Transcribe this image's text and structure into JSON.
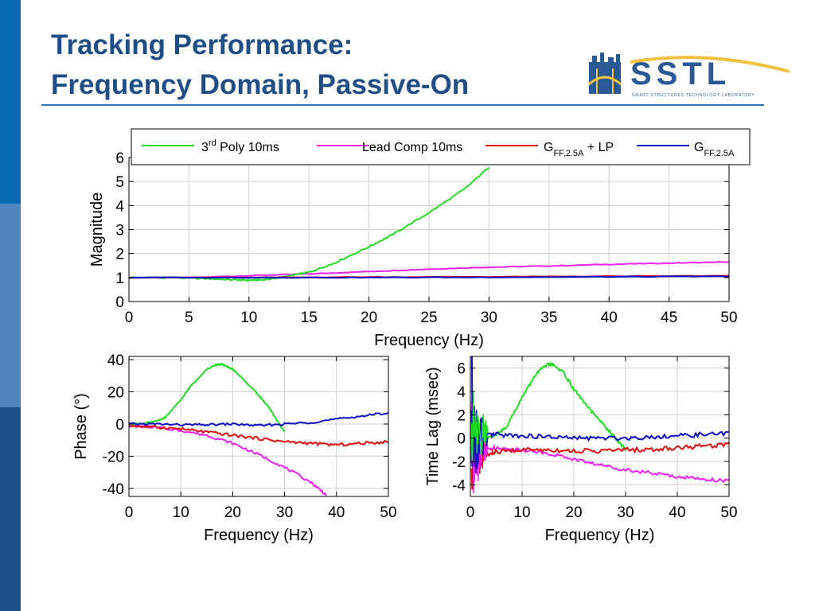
{
  "slide": {
    "title_line1": "Tracking Performance:",
    "title_line2": "Frequency Domain, Passive-On"
  },
  "logo": {
    "name": "SSTL",
    "subtitle": "SMART STRUCTURES TECHNOLOGY LABORATORY"
  },
  "colors": {
    "title": "#1f4e87",
    "poly": "#22dd22",
    "lead": "#ee22ee",
    "gff_lp": "#e01010",
    "gff": "#1010c8"
  },
  "legend": [
    {
      "key": "poly",
      "main": "3",
      "sup": "rd",
      "rest": " Poly 10ms"
    },
    {
      "key": "lead",
      "main": "Lead Comp 10ms"
    },
    {
      "key": "gff_lp",
      "main": "G",
      "sub": "FF,2.5A",
      "rest": " + LP"
    },
    {
      "key": "gff",
      "main": "G",
      "sub": "FF,2.5A"
    }
  ],
  "chart_data": [
    {
      "type": "line",
      "id": "magnitude",
      "xlabel": "Frequency (Hz)",
      "ylabel": "Magnitude",
      "xlim": [
        0,
        50
      ],
      "ylim": [
        0,
        6
      ],
      "xticks": [
        0,
        5,
        10,
        15,
        20,
        25,
        30,
        35,
        40,
        45,
        50
      ],
      "yticks": [
        0,
        1,
        2,
        3,
        4,
        5,
        6
      ],
      "grid": true,
      "legend_position": "top",
      "series": [
        {
          "key": "poly",
          "x": [
            0,
            4,
            7,
            9,
            10,
            11,
            12,
            13,
            14,
            15,
            17,
            20,
            22,
            25,
            28,
            30
          ],
          "y": [
            1.0,
            0.99,
            0.94,
            0.9,
            0.89,
            0.9,
            0.95,
            1.04,
            1.13,
            1.22,
            1.58,
            2.28,
            2.8,
            3.7,
            4.7,
            5.6
          ]
        },
        {
          "key": "lead",
          "x": [
            0,
            5,
            10,
            15,
            20,
            25,
            30,
            35,
            40,
            45,
            50
          ],
          "y": [
            1.0,
            0.99,
            1.08,
            1.15,
            1.25,
            1.35,
            1.43,
            1.48,
            1.55,
            1.6,
            1.65
          ]
        },
        {
          "key": "gff_lp",
          "x": [
            0,
            10,
            20,
            30,
            40,
            50
          ],
          "y": [
            1.0,
            1.0,
            1.02,
            1.03,
            1.05,
            1.07
          ]
        },
        {
          "key": "gff",
          "x": [
            0,
            10,
            20,
            30,
            40,
            50
          ],
          "y": [
            1.0,
            1.0,
            1.0,
            1.01,
            1.03,
            1.05
          ]
        }
      ]
    },
    {
      "type": "line",
      "id": "phase",
      "xlabel": "Frequency (Hz)",
      "ylabel": "Phase (°)",
      "xlim": [
        0,
        50
      ],
      "ylim": [
        -45,
        42
      ],
      "xticks": [
        0,
        10,
        20,
        30,
        40,
        50
      ],
      "yticks": [
        -40,
        -20,
        0,
        20,
        40
      ],
      "grid": true,
      "series": [
        {
          "key": "poly",
          "x": [
            0,
            3,
            5,
            7,
            10,
            12,
            15,
            17,
            18,
            20,
            22,
            25,
            27,
            29,
            30
          ],
          "y": [
            0,
            0.5,
            1.5,
            4,
            15,
            24,
            34,
            37,
            37,
            34,
            28,
            18,
            10,
            0,
            -5
          ]
        },
        {
          "key": "lead",
          "x": [
            0,
            5,
            10,
            15,
            20,
            25,
            30,
            35,
            38
          ],
          "y": [
            -1,
            -2,
            -4,
            -7,
            -12,
            -19,
            -27,
            -36,
            -44
          ]
        },
        {
          "key": "gff_lp",
          "x": [
            0,
            5,
            10,
            15,
            20,
            25,
            30,
            35,
            40,
            45,
            50
          ],
          "y": [
            -1,
            -2,
            -3,
            -5,
            -7,
            -9,
            -11,
            -12,
            -13,
            -12,
            -11
          ]
        },
        {
          "key": "gff",
          "x": [
            0,
            5,
            10,
            15,
            20,
            25,
            30,
            35,
            40,
            45,
            50
          ],
          "y": [
            0,
            0,
            -0.5,
            -0.5,
            0,
            -1,
            0,
            1,
            3,
            5,
            7
          ]
        }
      ]
    },
    {
      "type": "line",
      "id": "timelag",
      "xlabel": "Frequency (Hz)",
      "ylabel": "Time Lag (msec)",
      "xlim": [
        0,
        50
      ],
      "ylim": [
        -5,
        7
      ],
      "xticks": [
        0,
        10,
        20,
        30,
        40,
        50
      ],
      "yticks": [
        -4,
        -2,
        0,
        2,
        4,
        6
      ],
      "grid": true,
      "series": [
        {
          "key": "poly",
          "x": [
            1,
            2,
            3,
            5,
            7,
            10,
            13,
            15,
            16,
            18,
            20,
            23,
            26,
            28,
            30
          ],
          "y": [
            1.5,
            1,
            0,
            0.3,
            1,
            3.5,
            5.7,
            6.3,
            6.3,
            5.6,
            4.2,
            2.5,
            1,
            0,
            -1
          ]
        },
        {
          "key": "lead",
          "x": [
            3,
            5,
            8,
            10,
            15,
            20,
            25,
            30,
            35,
            40,
            45,
            50
          ],
          "y": [
            -1,
            -0.8,
            -1,
            -1,
            -1.3,
            -1.8,
            -2.3,
            -2.7,
            -3,
            -3.3,
            -3.5,
            -3.7
          ]
        },
        {
          "key": "gff_lp",
          "x": [
            3,
            5,
            10,
            15,
            20,
            25,
            30,
            35,
            40,
            45,
            50
          ],
          "y": [
            -1.5,
            -1.2,
            -1,
            -1,
            -1.1,
            -1.1,
            -1,
            -1,
            -0.8,
            -0.7,
            -0.5
          ]
        },
        {
          "key": "gff",
          "x": [
            3,
            5,
            10,
            15,
            20,
            25,
            30,
            35,
            40,
            45,
            50
          ],
          "y": [
            0.2,
            0.3,
            0.2,
            0.1,
            0,
            0,
            0,
            0.1,
            0.2,
            0.3,
            0.4
          ]
        }
      ]
    }
  ]
}
